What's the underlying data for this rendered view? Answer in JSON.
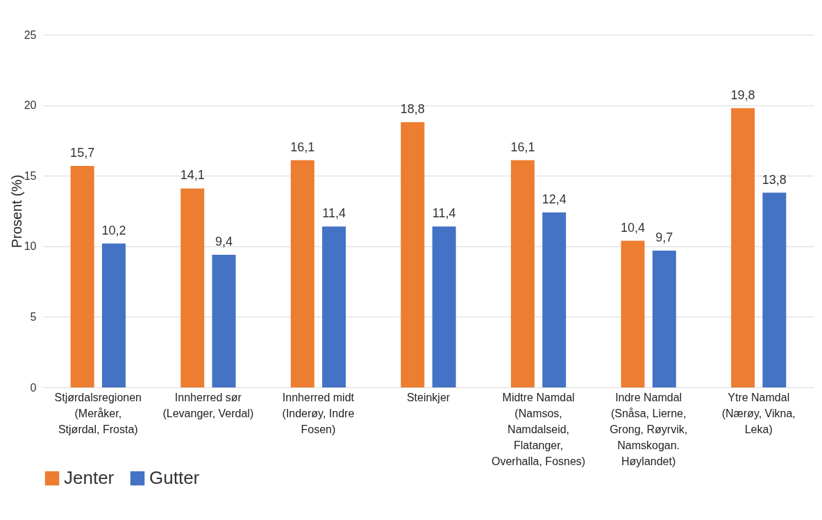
{
  "chart_data": {
    "type": "bar",
    "ylabel": "Prosent (%)",
    "categories": [
      "Stjørdalsregionen\n(Meråker,\nStjørdal, Frosta)",
      "Innherred sør\n(Levanger, Verdal)",
      "Innherred midt\n(Inderøy, Indre\nFosen)",
      "Steinkjer",
      "Midtre Namdal\n(Namsos,\nNamdalseid,\nFlatanger,\nOverhalla, Fosnes)",
      "Indre Namdal\n(Snåsa, Lierne,\nGrong, Røyrvik,\nNamskogan.\nHøylandet)",
      "Ytre Namdal\n(Nærøy, Vikna,\nLeka)"
    ],
    "series": [
      {
        "name": "Jenter",
        "color": "#ed7d31",
        "values": [
          15.7,
          14.1,
          16.1,
          18.8,
          16.1,
          10.4,
          19.8
        ],
        "value_labels": [
          "15,7",
          "14,1",
          "16,1",
          "18,8",
          "16,1",
          "10,4",
          "19,8"
        ]
      },
      {
        "name": "Gutter",
        "color": "#4472c4",
        "values": [
          10.2,
          9.4,
          11.4,
          11.4,
          12.4,
          9.7,
          13.8
        ],
        "value_labels": [
          "10,2",
          "9,4",
          "11,4",
          "11,4",
          "12,4",
          "9,7",
          "13,8"
        ]
      }
    ],
    "ylim": [
      0,
      25
    ],
    "yticks": [
      0,
      5,
      10,
      15,
      20,
      25
    ],
    "grid": "y",
    "legend": "bottom"
  }
}
